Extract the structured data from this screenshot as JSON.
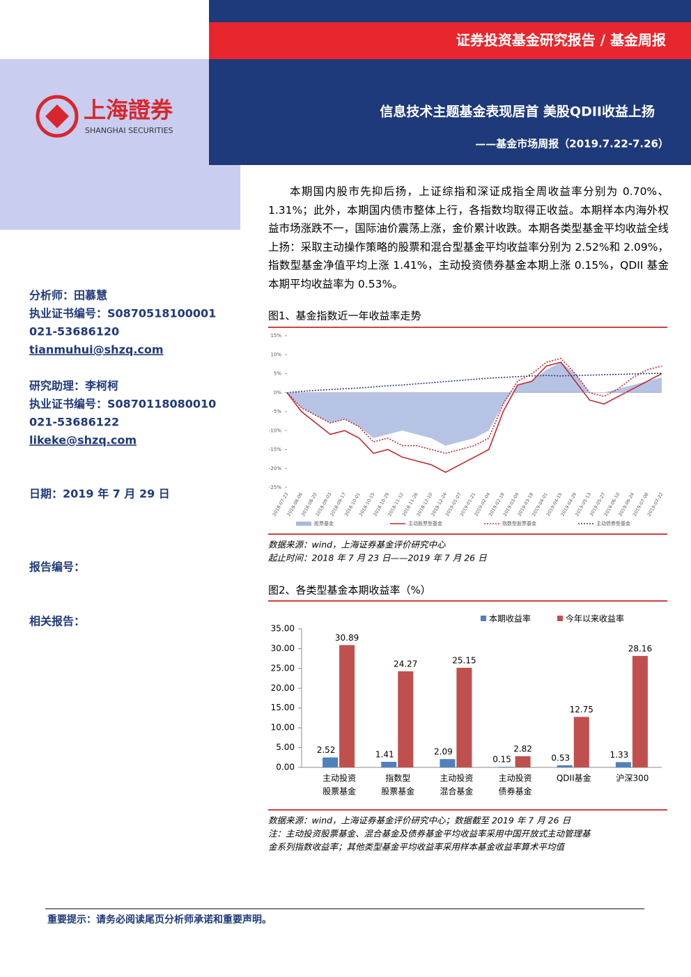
{
  "header": {
    "report_type": "证券投资基金研究报告 / 基金周报",
    "title": "信息技术主题基金表现居首 美股QDII收益上扬",
    "subtitle": "——基金市场周报（2019.7.22-7.26）",
    "logo_cn": "上海證券",
    "logo_en": "SHANGHAI SECURITIES"
  },
  "sidebar": {
    "analyst": "分析师：田慕慧",
    "analyst_cert": "执业证书编号：S0870518100001",
    "analyst_phone": "021-53686120",
    "analyst_email": "tianmuhui@shzq.com",
    "assistant": "研究助理：李柯柯",
    "assistant_cert": "执业证书编号：S0870118080010",
    "assistant_phone": "021-53686122",
    "assistant_email": "likeke@shzq.com",
    "date": "日期：2019 年 7 月 29 日",
    "report_no": "报告编号：",
    "related": "相关报告："
  },
  "summary": "本期国内股市先抑后扬，上证综指和深证成指全周收益率分别为 0.70%、1.31%；此外，本期国内债市整体上行，各指数均取得正收益。本期样本内海外权益市场涨跌不一，国际油价震荡上涨，金价累计收跌。本期各类型基金平均收益全线上扬：采取主动操作策略的股票和混合型基金平均收益率分别为 2.52%和 2.09%，指数型基金净值平均上涨 1.41%，主动投资债券基金本期上涨 0.15%，QDII 基金本期平均收益率为 0.53%。",
  "footer": "重要提示：请务必阅读尾页分析师承诺和重要声明。",
  "chart_data": [
    {
      "type": "line",
      "title": "图1、基金指数近一年收益率走势",
      "x": [
        "2018-07-23",
        "2018-08-06",
        "2018-08-20",
        "2018-09-03",
        "2018-09-17",
        "2018-10-01",
        "2018-10-15",
        "2018-10-29",
        "2018-11-12",
        "2018-11-26",
        "2018-12-10",
        "2018-12-24",
        "2019-01-07",
        "2019-01-21",
        "2019-02-04",
        "2019-02-18",
        "2019-03-04",
        "2019-03-18",
        "2019-04-01",
        "2019-04-15",
        "2019-04-29",
        "2019-05-13",
        "2019-05-27",
        "2019-06-10",
        "2019-06-24",
        "2019-07-08",
        "2019-07-22"
      ],
      "series": [
        {
          "name": "股票基金",
          "color": "#a9b8e0",
          "style": "area",
          "values": [
            0,
            -4,
            -6,
            -8,
            -7,
            -9,
            -12,
            -11,
            -10,
            -11,
            -12,
            -14,
            -13,
            -12,
            -10,
            -3,
            2,
            3,
            6,
            8,
            5,
            0,
            0,
            1,
            2,
            3,
            4
          ]
        },
        {
          "name": "主动股票型基金",
          "color": "#c0282d",
          "style": "solid",
          "values": [
            0,
            -5,
            -8,
            -11,
            -10,
            -12,
            -16,
            -15,
            -17,
            -18,
            -19,
            -21,
            -19,
            -17,
            -15,
            -5,
            2,
            3,
            7,
            8,
            3,
            -2,
            -3,
            -1,
            1,
            3,
            5
          ]
        },
        {
          "name": "指数型股票基金",
          "color": "#c0282d",
          "style": "dotted",
          "values": [
            0,
            -4,
            -6,
            -8,
            -7,
            -9,
            -13,
            -12,
            -14,
            -14,
            -15,
            -16,
            -15,
            -14,
            -12,
            -3,
            3,
            5,
            8,
            9,
            5,
            0,
            -1,
            1,
            4,
            6,
            7
          ]
        },
        {
          "name": "主动债券型基金",
          "color": "#1f3a7a",
          "style": "dotted",
          "values": [
            0,
            0.3,
            0.6,
            0.8,
            1,
            1.2,
            1.5,
            1.8,
            2,
            2.3,
            2.6,
            2.9,
            3.2,
            3.5,
            3.8,
            4,
            4.2,
            4.4,
            4.5,
            4.4,
            4.5,
            4.6,
            4.7,
            4.8,
            4.9,
            5,
            5.1
          ]
        }
      ],
      "ylim": [
        -25,
        15
      ],
      "yticks": [
        {
          "value": 15,
          "label": "15%"
        },
        {
          "value": 10,
          "label": "10%"
        },
        {
          "value": 5,
          "label": "5%"
        },
        {
          "value": 0,
          "label": "0%"
        },
        {
          "value": -5,
          "label": "-5%"
        },
        {
          "value": -10,
          "label": "-10%"
        },
        {
          "value": -15,
          "label": "-15%"
        },
        {
          "value": -20,
          "label": "-20%"
        },
        {
          "value": -25,
          "label": "-25%"
        }
      ],
      "source": [
        "数据来源：wind，上海证券基金评价研究中心",
        "起止时间：2018 年 7 月 23 日——2019 年 7 月 26 日"
      ]
    },
    {
      "type": "bar",
      "title": "图2、各类型基金本期收益率（%）",
      "categories": [
        [
          "主动投资",
          "股票基金"
        ],
        [
          "指数型",
          "股票基金"
        ],
        [
          "主动投资",
          "混合基金"
        ],
        [
          "主动投资",
          "债券基金"
        ],
        [
          "QDII基金"
        ],
        [
          "沪深300"
        ]
      ],
      "series": [
        {
          "name": "本期收益率",
          "color": "#4f81bd",
          "values": [
            2.52,
            1.41,
            2.09,
            0.15,
            0.53,
            1.33
          ]
        },
        {
          "name": "今年以来收益率",
          "color": "#c0504d",
          "values": [
            30.89,
            24.27,
            25.15,
            2.82,
            12.75,
            28.16
          ]
        }
      ],
      "ylim": [
        0,
        35
      ],
      "yticks": [
        {
          "value": 35,
          "label": "35.00"
        },
        {
          "value": 30,
          "label": "30.00"
        },
        {
          "value": 25,
          "label": "25.00"
        },
        {
          "value": 20,
          "label": "20.00"
        },
        {
          "value": 15,
          "label": "15.00"
        },
        {
          "value": 10,
          "label": "10.00"
        },
        {
          "value": 5,
          "label": "5.00"
        },
        {
          "value": 0,
          "label": "0.00"
        }
      ],
      "source": [
        "数据来源：wind，上海证券基金评价研究中心；数据截至 2019 年 7 月 26 日",
        "注：主动投资股票基金、混合基金及债券基金平均收益率采用中国开放式主动管理基",
        "金系列指数收益率；其他类型基金平均收益率采用样本基金收益率算术平均值"
      ]
    }
  ]
}
